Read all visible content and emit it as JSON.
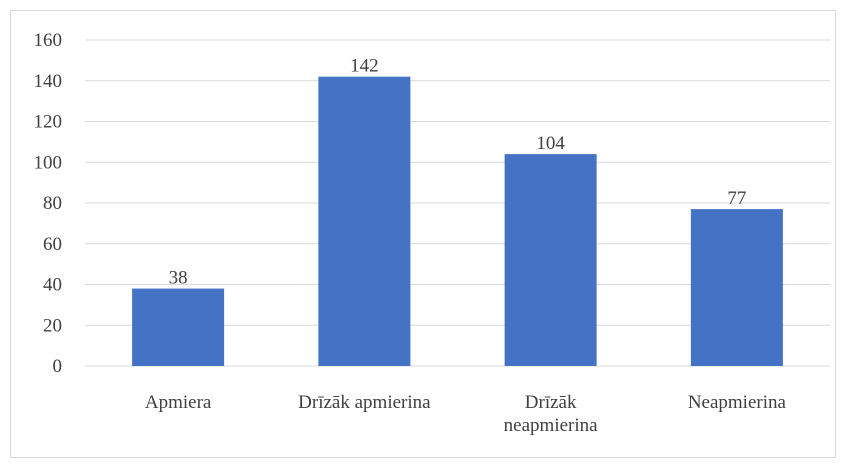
{
  "chart_data": {
    "type": "bar",
    "categories": [
      [
        "Apmiera"
      ],
      [
        "Drīzāk apmierina"
      ],
      [
        "Drīzāk",
        "neapmierina"
      ],
      [
        "Neapmierina"
      ]
    ],
    "values": [
      38,
      142,
      104,
      77
    ],
    "ylim": [
      0,
      160
    ],
    "yticks": [
      0,
      20,
      40,
      60,
      80,
      100,
      120,
      140,
      160
    ],
    "grid": true,
    "bar_color": "#4472c4",
    "grid_color": "#d9d9d9",
    "data_labels": true
  }
}
